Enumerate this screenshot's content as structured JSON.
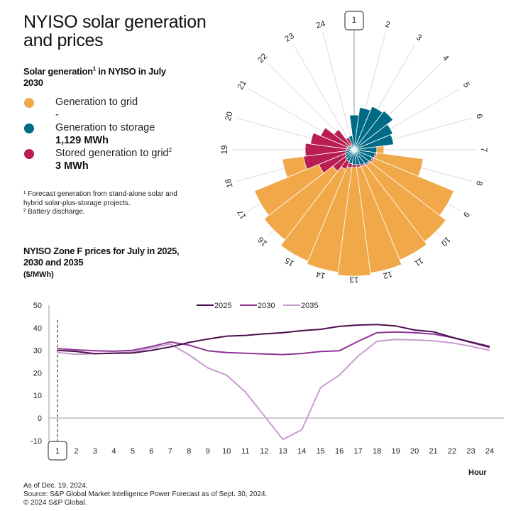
{
  "title": "NYISO solar generation and prices",
  "solar_section": {
    "heading": "Solar generation",
    "heading_sup": "1",
    "heading_line2": "in NYISO in July 2030",
    "legend": [
      {
        "label": "Generation to grid",
        "sup": "",
        "value": "-",
        "color": "#F0A848"
      },
      {
        "label": "Generation to storage",
        "sup": "",
        "value": "1,129 MWh",
        "color": "#006B86"
      },
      {
        "label": "Stored generation to grid",
        "sup": "2",
        "value": "3 MWh",
        "color": "#B81E52"
      }
    ],
    "footnote1": "¹ Forecast generation from stand-alone solar and hybrid solar-plus-storage projects.",
    "footnote2": "² Battery discharge."
  },
  "price_section": {
    "heading": "NYISO Zone F prices for July in 2025, 2030 and 2035",
    "unit": "($/MWh)",
    "xaxis_title": "Hour"
  },
  "footer": {
    "line1": "As of Dec. 19, 2024.",
    "line2": "Source: S&P Global Market Intelligence Power Forecast as of Sept. 30, 2024.",
    "line3": "© 2024 S&P Global."
  },
  "chart_data": [
    {
      "type": "polar-stacked-bar",
      "title": "Solar generation in NYISO in July 2030",
      "categories": [
        "1",
        "2",
        "3",
        "4",
        "5",
        "6",
        "7",
        "8",
        "9",
        "10",
        "11",
        "12",
        "13",
        "14",
        "15",
        "16",
        "17",
        "18",
        "19",
        "20",
        "21",
        "22",
        "23",
        "24"
      ],
      "highlighted_category": "1",
      "value_unit": "relative radius (no scale shown)",
      "series": [
        {
          "name": "Generation to storage",
          "color": "#006B86",
          "values": [
            47,
            58,
            64,
            67,
            57,
            54,
            30,
            28,
            26,
            24,
            22,
            20,
            19,
            18,
            16,
            14,
            12,
            10,
            9,
            8,
            7,
            6,
            5,
            18
          ]
        },
        {
          "name": "Stored generation to grid",
          "color": "#B81E52",
          "values": [
            0,
            0,
            0,
            0,
            0,
            0,
            0,
            2,
            2,
            2,
            2,
            3,
            4,
            6,
            12,
            22,
            40,
            60,
            58,
            52,
            42,
            28,
            12,
            0
          ]
        },
        {
          "name": "Generation to grid",
          "color": "#F0A848",
          "values": [
            0,
            0,
            0,
            0,
            0,
            0,
            10,
            66,
            122,
            135,
            142,
            150,
            153,
            148,
            140,
            122,
            98,
            30,
            0,
            0,
            0,
            0,
            0,
            0
          ]
        }
      ]
    },
    {
      "type": "line",
      "title": "NYISO Zone F prices for July in 2025, 2030 and 2035",
      "xlabel": "Hour",
      "ylabel": "$/MWh",
      "x": [
        1,
        2,
        3,
        4,
        5,
        6,
        7,
        8,
        9,
        10,
        11,
        12,
        13,
        14,
        15,
        16,
        17,
        18,
        19,
        20,
        21,
        22,
        23,
        24
      ],
      "ylim": [
        -10,
        50
      ],
      "yticks": [
        50,
        40,
        30,
        20,
        10,
        0,
        -10
      ],
      "highlighted_x": 1,
      "legend_position": "top",
      "series": [
        {
          "name": "2025",
          "color": "#4A0F4E",
          "values": [
            30.0,
            29.5,
            28.5,
            28.7,
            28.8,
            30.0,
            31.5,
            33.5,
            35.0,
            36.3,
            36.6,
            37.3,
            37.8,
            38.7,
            39.3,
            40.6,
            41.2,
            41.4,
            40.8,
            39.0,
            38.2,
            35.8,
            33.7,
            31.7
          ]
        },
        {
          "name": "2030",
          "color": "#8E3595",
          "values": [
            30.8,
            30.2,
            29.8,
            29.6,
            30.0,
            31.7,
            33.7,
            32.3,
            29.8,
            29.0,
            28.7,
            28.4,
            28.1,
            28.6,
            29.5,
            29.8,
            34.0,
            37.8,
            38.1,
            37.8,
            37.2,
            35.7,
            33.5,
            31.3
          ]
        },
        {
          "name": "2035",
          "color": "#C99BD0",
          "values": [
            29.0,
            28.2,
            28.5,
            28.8,
            29.2,
            31.0,
            32.8,
            28.0,
            22.2,
            19.0,
            11.5,
            1.0,
            -9.5,
            -5.2,
            13.5,
            19.0,
            27.5,
            34.0,
            34.8,
            34.6,
            34.2,
            33.3,
            31.8,
            30.0
          ]
        }
      ]
    }
  ]
}
